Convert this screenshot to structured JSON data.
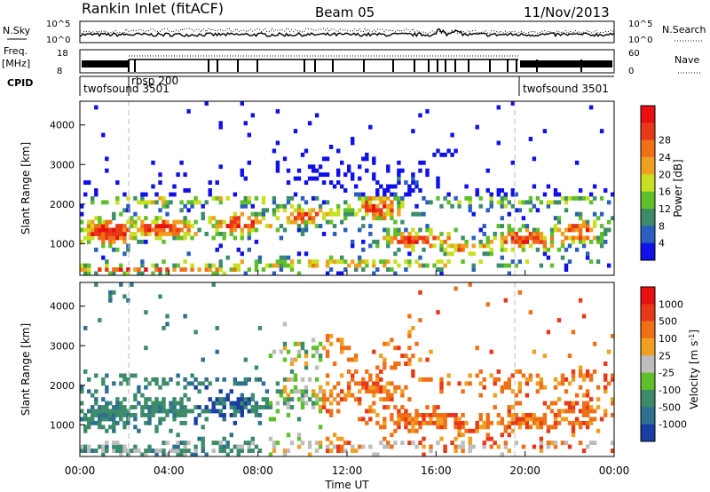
{
  "header": {
    "title": "Rankin Inlet (fitACF)",
    "beam": "Beam 05",
    "date": "11/Nov/2013"
  },
  "panels": {
    "nsky_label": "N.Sky",
    "nsky_ticks": [
      "10^5",
      "10^0"
    ],
    "nsearch_label": "N.Search",
    "freq_label_top": "Freq.",
    "freq_label_unit": "[MHz]",
    "freq_ticks": [
      "18",
      "8"
    ],
    "nave_label": "Nave",
    "nave_ticks": [
      "60",
      "0"
    ],
    "cpid_label": "CPID",
    "cpid_modes": [
      "twofsound 3501",
      "rbsp 200",
      "twofsound 3501"
    ]
  },
  "chart_data": [
    {
      "type": "heatmap",
      "name": "power",
      "ylabel": "Slant Range [km]",
      "xlabel": "Time UT",
      "x_ticks": [
        "00:00",
        "04:00",
        "08:00",
        "12:00",
        "16:00",
        "20:00",
        "00:00"
      ],
      "y_ticks": [
        1000,
        2000,
        3000,
        4000
      ],
      "ylim": [
        200,
        4600
      ],
      "colorbar_label": "Power [dB]",
      "colorbar_ticks": [
        4,
        8,
        12,
        16,
        20,
        24,
        28
      ],
      "colorbar_colors": [
        "#1010e8",
        "#2a5fc0",
        "#3c8c6a",
        "#5fbf2a",
        "#c8e020",
        "#f0a020",
        "#f07018",
        "#e83818",
        "#e81010"
      ]
    },
    {
      "type": "heatmap",
      "name": "velocity",
      "ylabel": "Slant Range [km]",
      "xlabel": "Time UT",
      "x_ticks": [
        "00:00",
        "04:00",
        "08:00",
        "12:00",
        "16:00",
        "20:00",
        "00:00"
      ],
      "y_ticks": [
        1000,
        2000,
        3000,
        4000
      ],
      "ylim": [
        200,
        4600
      ],
      "colorbar_label": "Velocity [m s^-1]",
      "colorbar_ticks": [
        "1000",
        "500",
        "100",
        "25",
        "-25",
        "-100",
        "-500",
        "-1000"
      ],
      "colorbar_colors": [
        "#1a3fa0",
        "#2f6f8f",
        "#3c8c6a",
        "#5fbf2a",
        "#bdbdbd",
        "#f0a020",
        "#f07018",
        "#e83818",
        "#e81010"
      ]
    }
  ]
}
